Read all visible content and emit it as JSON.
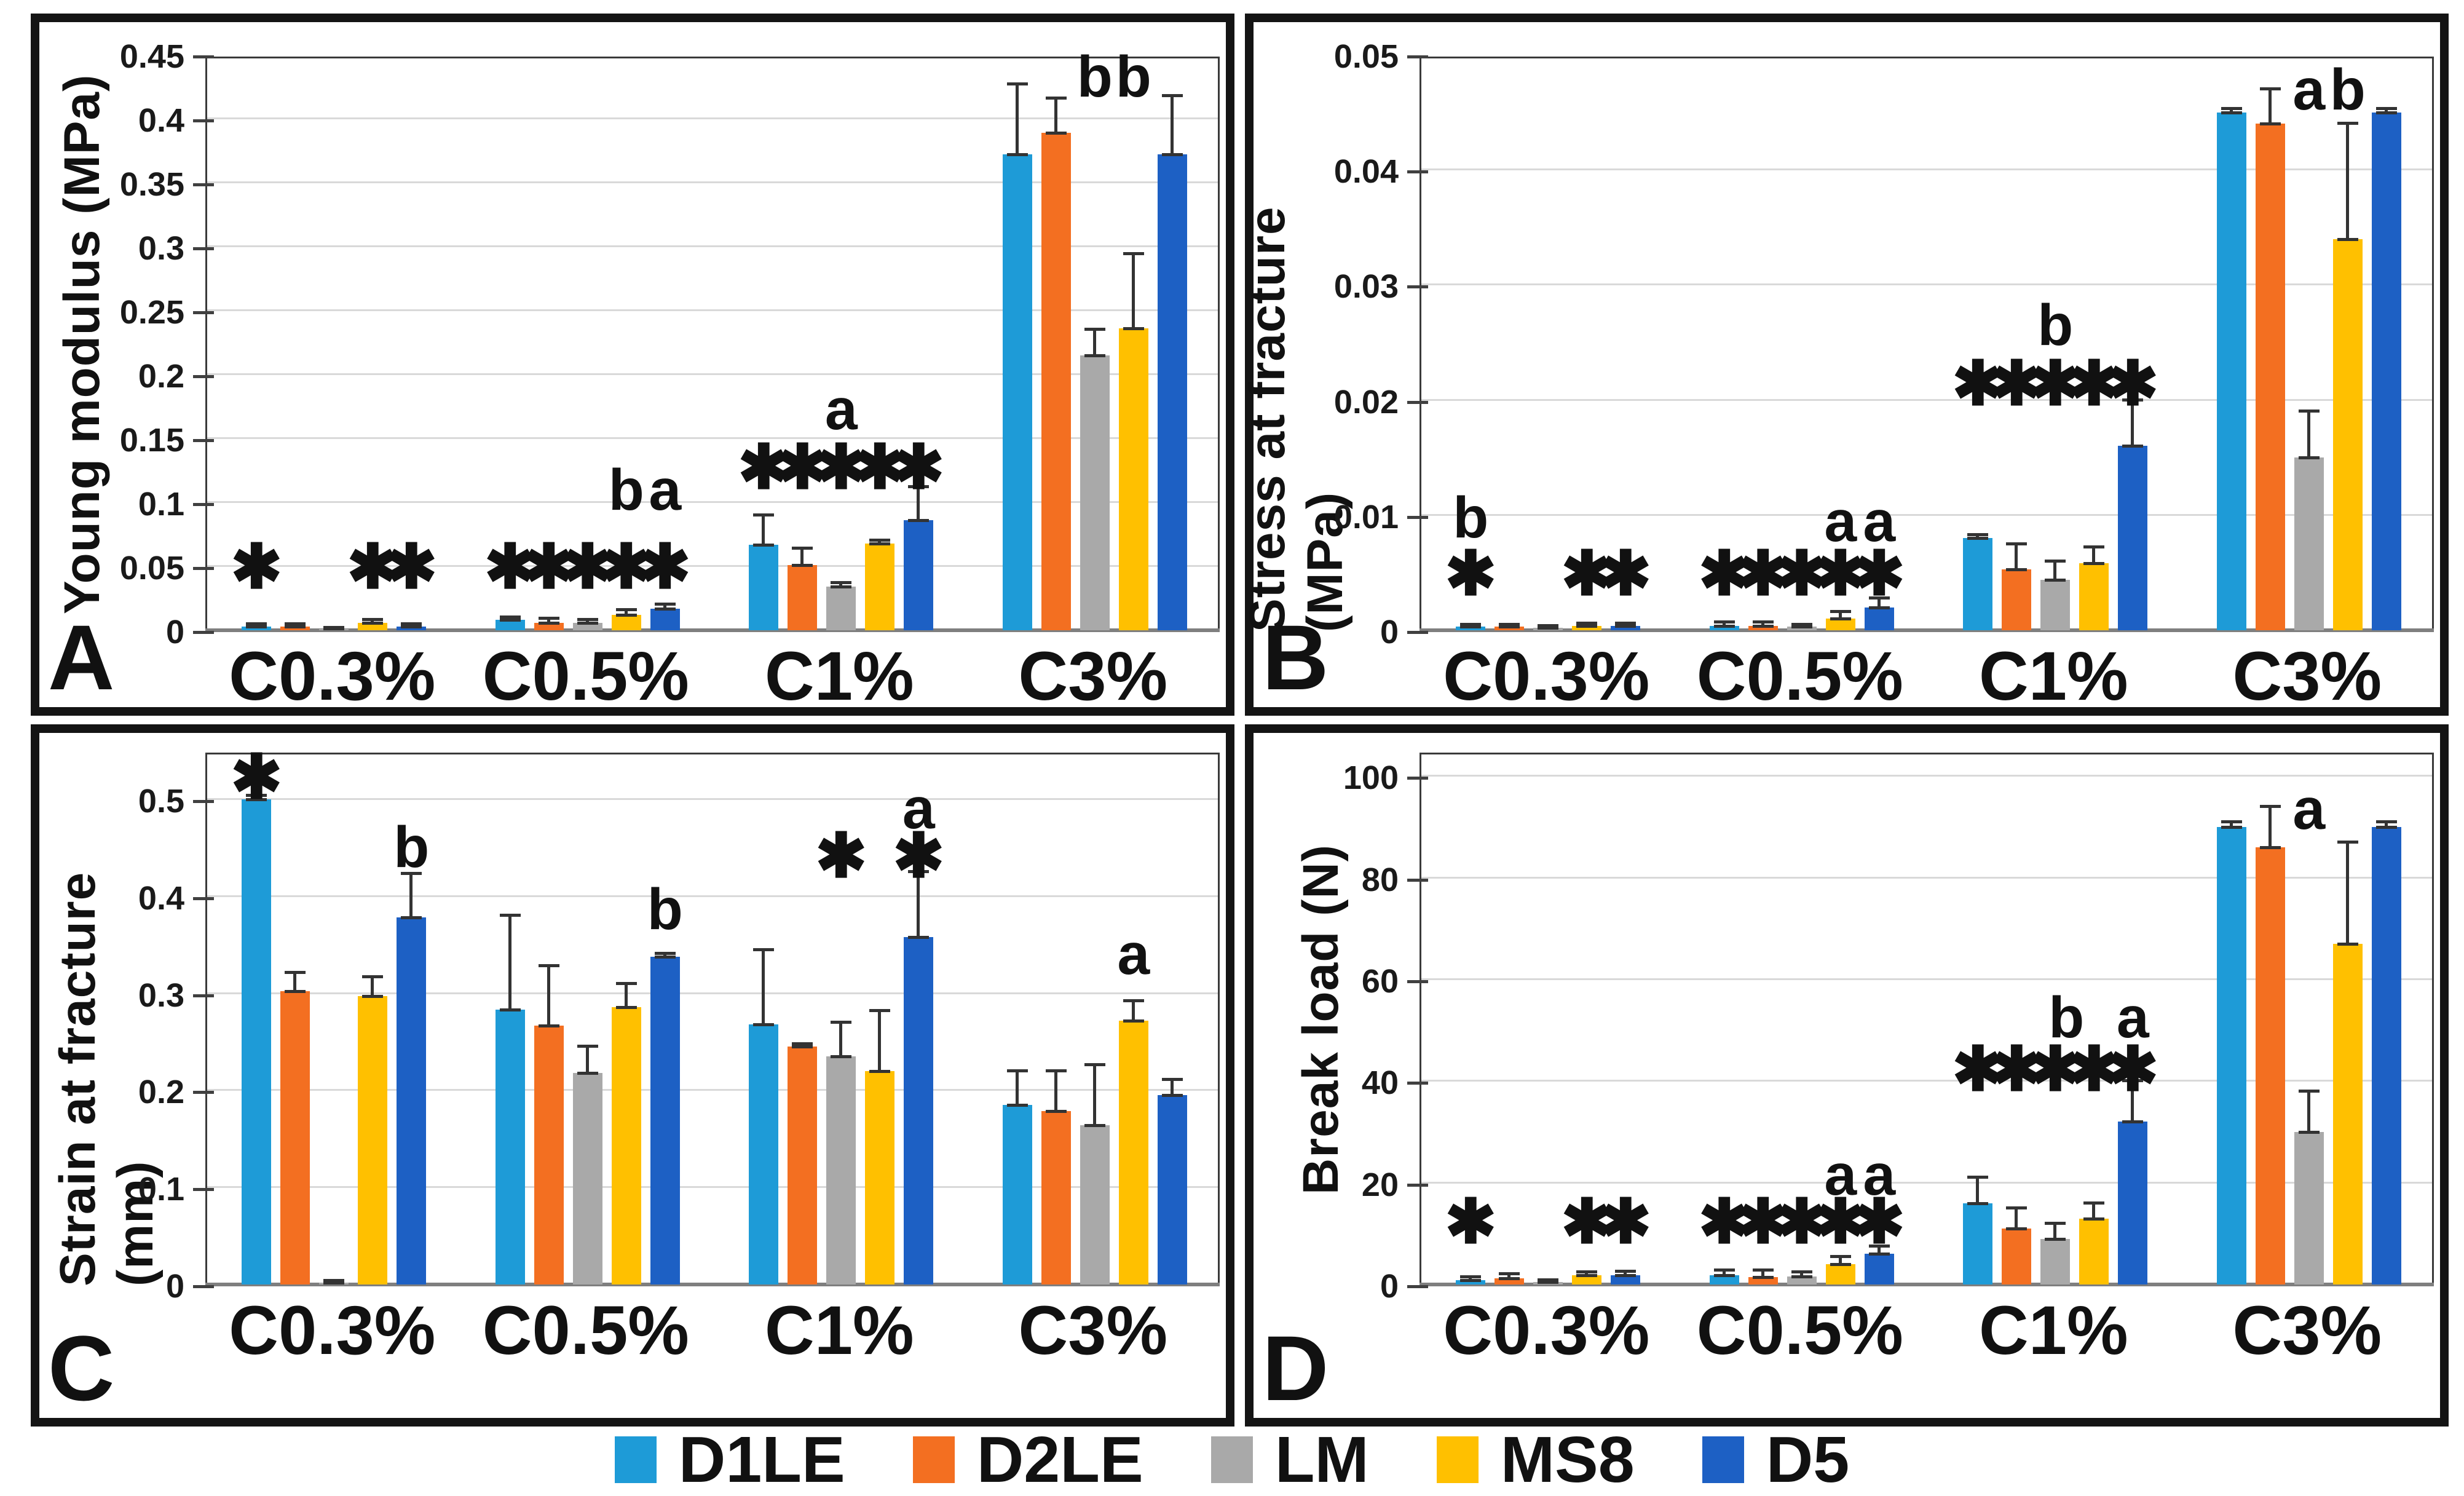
{
  "figure": {
    "background": "#ffffff"
  },
  "legend": {
    "items": [
      {
        "label": "D1LE",
        "color": "#1E9BD7"
      },
      {
        "label": "D2LE",
        "color": "#F36F21"
      },
      {
        "label": "LM",
        "color": "#A9A9A9"
      },
      {
        "label": "MS8",
        "color": "#FFC000"
      },
      {
        "label": "D5",
        "color": "#1D60C4"
      }
    ]
  },
  "style": {
    "grid_color": "#d9d9d9",
    "error_bar_color": "#333333",
    "axis_color": "#7f7f7f",
    "frame_color": "#3a3a3a"
  },
  "chart_data": [
    {
      "type": "bar",
      "panel_label": "A",
      "ylabel": "Young modulus (MPa)",
      "ymax": 0.45,
      "ylim": [
        0,
        0.45
      ],
      "grid": true,
      "legend_position": "bottom",
      "yticks": [
        {
          "v": 0,
          "label": "0"
        },
        {
          "v": 0.05,
          "label": "0.05"
        },
        {
          "v": 0.1,
          "label": "0.1"
        },
        {
          "v": 0.15,
          "label": "0.15"
        },
        {
          "v": 0.2,
          "label": "0.2"
        },
        {
          "v": 0.25,
          "label": "0.25"
        },
        {
          "v": 0.3,
          "label": "0.3"
        },
        {
          "v": 0.35,
          "label": "0.35"
        },
        {
          "v": 0.4,
          "label": "0.4"
        },
        {
          "v": 0.45,
          "label": "0.45"
        }
      ],
      "categories": [
        "C0.3%",
        "C0.5%",
        "C1%",
        "C3%"
      ],
      "series": [
        {
          "name": "D1LE",
          "values": [
            0.003,
            0.008,
            0.067,
            0.372
          ],
          "errors": [
            0.005,
            0.01,
            0.09,
            0.427
          ]
        },
        {
          "name": "D2LE",
          "values": [
            0.003,
            0.006,
            0.051,
            0.389
          ],
          "errors": [
            0.005,
            0.009,
            0.064,
            0.416
          ]
        },
        {
          "name": "LM",
          "values": [
            0.001,
            0.006,
            0.034,
            0.215
          ],
          "errors": [
            0.002,
            0.008,
            0.037,
            0.235
          ]
        },
        {
          "name": "MS8",
          "values": [
            0.006,
            0.012,
            0.068,
            0.236
          ],
          "errors": [
            0.008,
            0.016,
            0.07,
            0.294
          ]
        },
        {
          "name": "D5",
          "values": [
            0.003,
            0.017,
            0.086,
            0.372
          ],
          "errors": [
            0.005,
            0.02,
            0.112,
            0.418
          ]
        }
      ],
      "annotations": [
        {
          "group": 0,
          "series": 0,
          "kind": "star",
          "text": "✱",
          "y": 0.032
        },
        {
          "group": 0,
          "series": 3,
          "kind": "star",
          "text": "✱",
          "y": 0.032
        },
        {
          "group": 0,
          "series": 4,
          "kind": "star",
          "text": "✱",
          "y": 0.032
        },
        {
          "group": 1,
          "series": 0,
          "kind": "star",
          "text": "✱",
          "y": 0.032
        },
        {
          "group": 1,
          "series": 1,
          "kind": "star",
          "text": "✱",
          "y": 0.032
        },
        {
          "group": 1,
          "series": 2,
          "kind": "star",
          "text": "✱",
          "y": 0.032
        },
        {
          "group": 1,
          "series": 3,
          "kind": "star",
          "text": "✱",
          "y": 0.032
        },
        {
          "group": 1,
          "series": 4,
          "kind": "star",
          "text": "✱",
          "y": 0.032
        },
        {
          "group": 1,
          "series": 3,
          "kind": "letter",
          "text": "b",
          "y": 0.092
        },
        {
          "group": 1,
          "series": 4,
          "kind": "letter",
          "text": "a",
          "y": 0.092
        },
        {
          "group": 2,
          "series": 0,
          "kind": "star",
          "text": "✱",
          "y": 0.11
        },
        {
          "group": 2,
          "series": 1,
          "kind": "star",
          "text": "✱",
          "y": 0.11
        },
        {
          "group": 2,
          "series": 2,
          "kind": "star",
          "text": "✱",
          "y": 0.11
        },
        {
          "group": 2,
          "series": 3,
          "kind": "star",
          "text": "✱",
          "y": 0.11
        },
        {
          "group": 2,
          "series": 4,
          "kind": "star",
          "text": "✱",
          "y": 0.11
        },
        {
          "group": 2,
          "series": 2,
          "kind": "letter",
          "text": "a",
          "y": 0.155
        },
        {
          "group": 3,
          "series": 2,
          "kind": "letter",
          "text": "b",
          "y": 0.415
        },
        {
          "group": 3,
          "series": 3,
          "kind": "letter",
          "text": "b",
          "y": 0.415
        }
      ]
    },
    {
      "type": "bar",
      "panel_label": "B",
      "ylabel": "Stress at fracture (MPa)",
      "ymax": 0.05,
      "ylim": [
        0,
        0.05
      ],
      "grid": true,
      "legend_position": "bottom",
      "yticks": [
        {
          "v": 0,
          "label": "0"
        },
        {
          "v": 0.01,
          "label": "0.01"
        },
        {
          "v": 0.02,
          "label": "0.02"
        },
        {
          "v": 0.03,
          "label": "0.03"
        },
        {
          "v": 0.04,
          "label": "0.04"
        },
        {
          "v": 0.05,
          "label": "0.05"
        }
      ],
      "categories": [
        "C0.3%",
        "C0.5%",
        "C1%",
        "C3%"
      ],
      "series": [
        {
          "name": "D1LE",
          "values": [
            0.0003,
            0.0004,
            0.008,
            0.045
          ],
          "errors": [
            0.0005,
            0.0007,
            0.0083,
            0.0453
          ]
        },
        {
          "name": "D2LE",
          "values": [
            0.0003,
            0.0004,
            0.0053,
            0.044
          ],
          "errors": [
            0.0005,
            0.0007,
            0.0075,
            0.047
          ]
        },
        {
          "name": "LM",
          "values": [
            0.0002,
            0.0003,
            0.0044,
            0.015
          ],
          "errors": [
            0.0004,
            0.0005,
            0.006,
            0.019
          ]
        },
        {
          "name": "MS8",
          "values": [
            0.0004,
            0.001,
            0.0058,
            0.034
          ],
          "errors": [
            0.0006,
            0.0016,
            0.0072,
            0.044
          ]
        },
        {
          "name": "D5",
          "values": [
            0.0004,
            0.002,
            0.016,
            0.045
          ],
          "errors": [
            0.0006,
            0.0028,
            0.02,
            0.0453
          ]
        }
      ],
      "annotations": [
        {
          "group": 0,
          "series": 0,
          "kind": "letter",
          "text": "b",
          "y": 0.0078
        },
        {
          "group": 0,
          "series": 0,
          "kind": "star",
          "text": "✱",
          "y": 0.003
        },
        {
          "group": 0,
          "series": 3,
          "kind": "star",
          "text": "✱",
          "y": 0.003
        },
        {
          "group": 0,
          "series": 4,
          "kind": "star",
          "text": "✱",
          "y": 0.003
        },
        {
          "group": 1,
          "series": 0,
          "kind": "star",
          "text": "✱",
          "y": 0.003
        },
        {
          "group": 1,
          "series": 1,
          "kind": "star",
          "text": "✱",
          "y": 0.003
        },
        {
          "group": 1,
          "series": 2,
          "kind": "star",
          "text": "✱",
          "y": 0.003
        },
        {
          "group": 1,
          "series": 3,
          "kind": "star",
          "text": "✱",
          "y": 0.003
        },
        {
          "group": 1,
          "series": 4,
          "kind": "star",
          "text": "✱",
          "y": 0.003
        },
        {
          "group": 1,
          "series": 3,
          "kind": "letter",
          "text": "a",
          "y": 0.0075
        },
        {
          "group": 1,
          "series": 4,
          "kind": "letter",
          "text": "a",
          "y": 0.0075
        },
        {
          "group": 2,
          "series": 0,
          "kind": "star",
          "text": "✱",
          "y": 0.0195
        },
        {
          "group": 2,
          "series": 1,
          "kind": "star",
          "text": "✱",
          "y": 0.0195
        },
        {
          "group": 2,
          "series": 2,
          "kind": "star",
          "text": "✱",
          "y": 0.0195
        },
        {
          "group": 2,
          "series": 3,
          "kind": "star",
          "text": "✱",
          "y": 0.0195
        },
        {
          "group": 2,
          "series": 4,
          "kind": "star",
          "text": "✱",
          "y": 0.0195
        },
        {
          "group": 2,
          "series": 2,
          "kind": "letter",
          "text": "b",
          "y": 0.0245
        },
        {
          "group": 3,
          "series": 2,
          "kind": "letter",
          "text": "a",
          "y": 0.045
        },
        {
          "group": 3,
          "series": 3,
          "kind": "letter",
          "text": "b",
          "y": 0.045
        }
      ]
    },
    {
      "type": "bar",
      "panel_label": "C",
      "ylabel": "Strain at fracture (mm)",
      "ymax": 0.55,
      "ylim": [
        0,
        0.55
      ],
      "grid": true,
      "legend_position": "bottom",
      "yticks": [
        {
          "v": 0,
          "label": "0"
        },
        {
          "v": 0.1,
          "label": "0.1"
        },
        {
          "v": 0.2,
          "label": "0.2"
        },
        {
          "v": 0.3,
          "label": "0.3"
        },
        {
          "v": 0.4,
          "label": "0.4"
        },
        {
          "v": 0.5,
          "label": "0.5"
        }
      ],
      "categories": [
        "C0.3%",
        "C0.5%",
        "C1%",
        "C3%"
      ],
      "series": [
        {
          "name": "D1LE",
          "values": [
            0.5,
            0.283,
            0.268,
            0.185
          ],
          "errors": [
            0.504,
            0.38,
            0.345,
            0.22
          ]
        },
        {
          "name": "D2LE",
          "values": [
            0.302,
            0.267,
            0.245,
            0.179
          ],
          "errors": [
            0.321,
            0.328,
            0.248,
            0.22
          ]
        },
        {
          "name": "LM",
          "values": [
            0.002,
            0.218,
            0.235,
            0.164
          ],
          "errors": [
            0.004,
            0.245,
            0.27,
            0.226
          ]
        },
        {
          "name": "MS8",
          "values": [
            0.297,
            0.286,
            0.22,
            0.272
          ],
          "errors": [
            0.317,
            0.31,
            0.282,
            0.292
          ]
        },
        {
          "name": "D5",
          "values": [
            0.378,
            0.338,
            0.358,
            0.195
          ],
          "errors": [
            0.423,
            0.341,
            0.425,
            0.211
          ]
        }
      ],
      "annotations": [
        {
          "group": 0,
          "series": 0,
          "kind": "star",
          "text": "✱",
          "y": 0.5
        },
        {
          "group": 0,
          "series": 4,
          "kind": "letter",
          "text": "b",
          "y": 0.427
        },
        {
          "group": 1,
          "series": 4,
          "kind": "letter",
          "text": "b",
          "y": 0.363
        },
        {
          "group": 2,
          "series": 2,
          "kind": "star",
          "text": "✱",
          "y": 0.419
        },
        {
          "group": 2,
          "series": 4,
          "kind": "letter",
          "text": "a",
          "y": 0.467
        },
        {
          "group": 2,
          "series": 4,
          "kind": "star",
          "text": "✱",
          "y": 0.419
        },
        {
          "group": 3,
          "series": 3,
          "kind": "letter",
          "text": "a",
          "y": 0.317
        }
      ]
    },
    {
      "type": "bar",
      "panel_label": "D",
      "ylabel": "Break load (N)",
      "ymax": 105,
      "ylim": [
        0,
        105
      ],
      "grid": true,
      "legend_position": "bottom",
      "yticks": [
        {
          "v": 0,
          "label": "0"
        },
        {
          "v": 20,
          "label": "20"
        },
        {
          "v": 40,
          "label": "40"
        },
        {
          "v": 60,
          "label": "60"
        },
        {
          "v": 80,
          "label": "80"
        },
        {
          "v": 100,
          "label": "100"
        }
      ],
      "categories": [
        "C0.3%",
        "C0.5%",
        "C1%",
        "C3%"
      ],
      "series": [
        {
          "name": "D1LE",
          "values": [
            0.8,
            1.8,
            16,
            90
          ],
          "errors": [
            1.5,
            2.8,
            21,
            91
          ]
        },
        {
          "name": "D2LE",
          "values": [
            1.2,
            1.5,
            11,
            86
          ],
          "errors": [
            2.0,
            2.8,
            15,
            94
          ]
        },
        {
          "name": "LM",
          "values": [
            0.5,
            1.6,
            9,
            30
          ],
          "errors": [
            0.8,
            2.4,
            12,
            38
          ]
        },
        {
          "name": "MS8",
          "values": [
            1.8,
            4.0,
            13,
            67
          ],
          "errors": [
            2.4,
            5.4,
            16,
            87
          ]
        },
        {
          "name": "D5",
          "values": [
            1.8,
            6.0,
            32,
            90
          ],
          "errors": [
            2.6,
            7.5,
            40,
            91
          ]
        }
      ],
      "annotations": [
        {
          "group": 0,
          "series": 0,
          "kind": "star",
          "text": "✱",
          "y": 8
        },
        {
          "group": 0,
          "series": 3,
          "kind": "star",
          "text": "✱",
          "y": 8
        },
        {
          "group": 0,
          "series": 4,
          "kind": "star",
          "text": "✱",
          "y": 8
        },
        {
          "group": 1,
          "series": 0,
          "kind": "star",
          "text": "✱",
          "y": 8
        },
        {
          "group": 1,
          "series": 1,
          "kind": "star",
          "text": "✱",
          "y": 8
        },
        {
          "group": 1,
          "series": 2,
          "kind": "star",
          "text": "✱",
          "y": 8
        },
        {
          "group": 1,
          "series": 3,
          "kind": "star",
          "text": "✱",
          "y": 8
        },
        {
          "group": 1,
          "series": 4,
          "kind": "star",
          "text": "✱",
          "y": 8
        },
        {
          "group": 1,
          "series": 3,
          "kind": "letter",
          "text": "a",
          "y": 17
        },
        {
          "group": 1,
          "series": 4,
          "kind": "letter",
          "text": "a",
          "y": 17
        },
        {
          "group": 2,
          "series": 0,
          "kind": "star",
          "text": "✱",
          "y": 38
        },
        {
          "group": 2,
          "series": 1,
          "kind": "star",
          "text": "✱",
          "y": 38
        },
        {
          "group": 2,
          "series": 2,
          "kind": "star",
          "text": "✱",
          "y": 38
        },
        {
          "group": 2,
          "series": 3,
          "kind": "star",
          "text": "✱",
          "y": 38
        },
        {
          "group": 2,
          "series": 4,
          "kind": "star",
          "text": "✱",
          "y": 38
        },
        {
          "group": 2,
          "series": 2,
          "kind": "letter",
          "text": "b",
          "y": 48,
          "dx": 18
        },
        {
          "group": 2,
          "series": 4,
          "kind": "letter",
          "text": "a",
          "y": 48
        },
        {
          "group": 3,
          "series": 2,
          "kind": "letter",
          "text": "a",
          "y": 89
        }
      ]
    }
  ]
}
